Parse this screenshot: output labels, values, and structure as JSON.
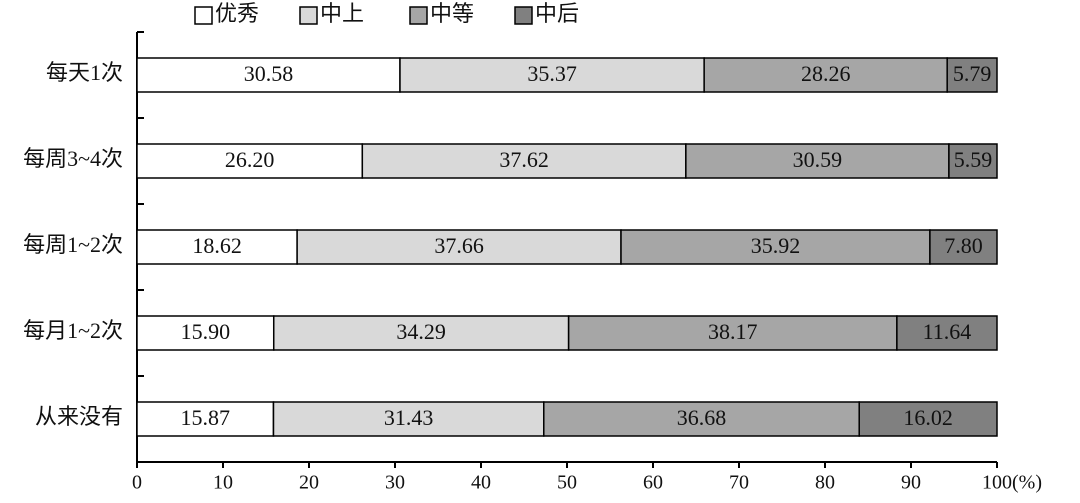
{
  "chart_data": {
    "type": "stacked-bar-horizontal",
    "categories": [
      "每天1次",
      "每周3~4次",
      "每周1~2次",
      "每月1~2次",
      "从来没有"
    ],
    "series": [
      {
        "name": "优秀",
        "color": "#ffffff",
        "values": [
          30.58,
          26.2,
          18.62,
          15.9,
          15.87
        ],
        "value_labels": [
          "30.58",
          "26.20",
          "18.62",
          "15.90",
          "15.87"
        ]
      },
      {
        "name": "中上",
        "color": "#d9d9d9",
        "values": [
          35.37,
          37.62,
          37.66,
          34.29,
          31.43
        ],
        "value_labels": [
          "35.37",
          "37.62",
          "37.66",
          "34.29",
          "31.43"
        ]
      },
      {
        "name": "中等",
        "color": "#a6a6a6",
        "values": [
          28.26,
          30.59,
          35.92,
          38.17,
          36.68
        ],
        "value_labels": [
          "28.26",
          "30.59",
          "35.92",
          "38.17",
          "36.68"
        ]
      },
      {
        "name": "中后",
        "color": "#808080",
        "values": [
          5.79,
          5.59,
          7.8,
          11.64,
          16.02
        ],
        "value_labels": [
          "5.79",
          "5.59",
          "7.80",
          "11.64",
          "16.02"
        ]
      }
    ],
    "x_label": "(%)",
    "xlim": [
      0,
      100
    ],
    "xticks": [
      0,
      10,
      20,
      30,
      40,
      50,
      60,
      70,
      80,
      90,
      100
    ],
    "legend": "top"
  }
}
